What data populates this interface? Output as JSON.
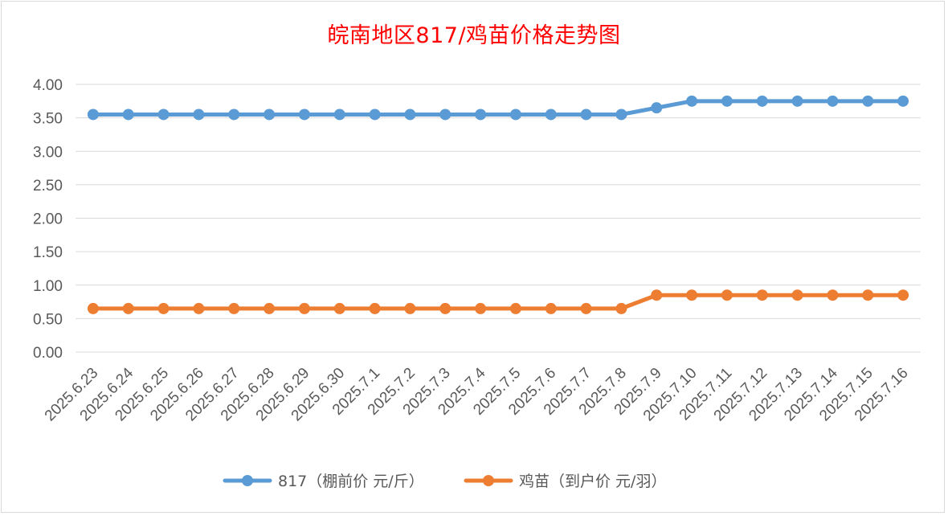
{
  "chart_data": {
    "type": "line",
    "title": "皖南地区817/鸡苗价格走势图",
    "x": [
      "2025.6.23",
      "2025.6.24",
      "2025.6.25",
      "2025.6.26",
      "2025.6.27",
      "2025.6.28",
      "2025.6.29",
      "2025.6.30",
      "2025.7.1",
      "2025.7.2",
      "2025.7.3",
      "2025.7.4",
      "2025.7.5",
      "2025.7.6",
      "2025.7.7",
      "2025.7.8",
      "2025.7.9",
      "2025.7.10",
      "2025.7.11",
      "2025.7.12",
      "2025.7.13",
      "2025.7.14",
      "2025.7.15",
      "2025.7.16"
    ],
    "series": [
      {
        "name": "817（棚前价 元/斤）",
        "color": "#5b9bd5",
        "values": [
          3.55,
          3.55,
          3.55,
          3.55,
          3.55,
          3.55,
          3.55,
          3.55,
          3.55,
          3.55,
          3.55,
          3.55,
          3.55,
          3.55,
          3.55,
          3.55,
          3.65,
          3.75,
          3.75,
          3.75,
          3.75,
          3.75,
          3.75,
          3.75
        ]
      },
      {
        "name": "鸡苗（到户价 元/羽）",
        "color": "#ed7d31",
        "values": [
          0.65,
          0.65,
          0.65,
          0.65,
          0.65,
          0.65,
          0.65,
          0.65,
          0.65,
          0.65,
          0.65,
          0.65,
          0.65,
          0.65,
          0.65,
          0.65,
          0.85,
          0.85,
          0.85,
          0.85,
          0.85,
          0.85,
          0.85,
          0.85
        ]
      }
    ],
    "y_ticks": [
      "0.00",
      "0.50",
      "1.00",
      "1.50",
      "2.00",
      "2.50",
      "3.00",
      "3.50",
      "4.00"
    ],
    "ylim": [
      0,
      4
    ],
    "grid": true,
    "legend_position": "bottom"
  }
}
